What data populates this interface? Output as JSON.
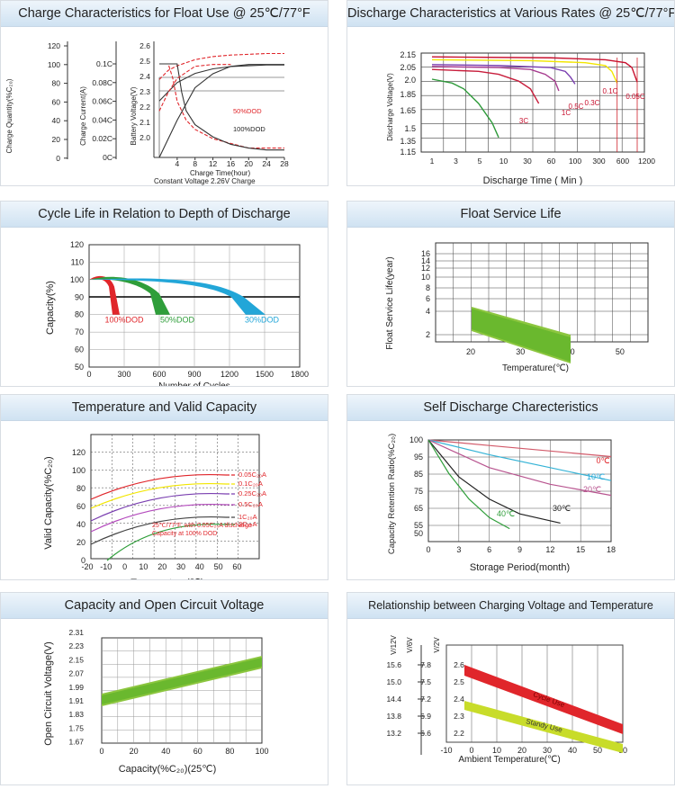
{
  "palette": {
    "grid": "#555",
    "red": "#e0262b",
    "green": "#2f9e3a",
    "blue": "#22a6d8",
    "lime": "#8cc63f",
    "yellow": "#f2e600",
    "orange": "#f7a11a",
    "pink": "#d0217a",
    "purple": "#7a3fb0",
    "magenta": "#b44bbd"
  },
  "panels": [
    {
      "title": "Charge Characteristics for Float Use @ 25℃/77°F"
    },
    {
      "title": "Discharge Characteristics at Various Rates @ 25℃/77°F"
    },
    {
      "title": "Cycle  Life in Relation to Depth of Discharge"
    },
    {
      "title": "Float Service Life"
    },
    {
      "title": "Temperature and Valid Capacity"
    },
    {
      "title": "Self Discharge Charecteristics"
    },
    {
      "title": "Capacity and Open Circuit Voltage"
    },
    {
      "title": "Relationship between Charging Voltage and Temperature"
    }
  ],
  "chart_data": [
    {
      "type": "line",
      "id": "charge",
      "ylabel_q": "Charge Quantity(%C₂₀)",
      "ylabel_i": "Charge Current(A)",
      "ylabel_v": "Battery Voltage(V)",
      "xlabel": "Charge Time(hour)",
      "note": "Constant Voltage 2.26V Charge",
      "q_ticks": [
        "120",
        "100",
        "80",
        "60",
        "40",
        "20",
        "0"
      ],
      "i_ticks": [
        "0.1C",
        "0.08C",
        "0.06C",
        "0.04C",
        "0.02C",
        "0C"
      ],
      "v_ticks": [
        "2.6",
        "2.5",
        "2.4",
        "2.3",
        "2.2",
        "2.1",
        "2.0"
      ],
      "x_ticks": [
        "4",
        "8",
        "12",
        "16",
        "20",
        "24",
        "28"
      ],
      "legend": [
        "50%DOD",
        "100%DOD"
      ],
      "series": [
        {
          "name": "50%DOD",
          "kind": "voltage",
          "x": [
            0,
            2,
            4,
            8,
            12,
            16,
            20,
            24,
            28
          ],
          "y": [
            2.38,
            2.44,
            2.47,
            2.51,
            2.53,
            2.54,
            2.545,
            2.55,
            2.55
          ]
        },
        {
          "name": "100%DOD",
          "kind": "voltage",
          "x": [
            0,
            2,
            4,
            8,
            12,
            16,
            20,
            24,
            28
          ],
          "y": [
            2.24,
            2.3,
            2.36,
            2.42,
            2.45,
            2.465,
            2.47,
            2.475,
            2.475
          ]
        },
        {
          "name": "50%DOD",
          "kind": "current",
          "x": [
            0,
            2,
            3,
            4,
            6,
            8,
            12,
            16,
            20,
            24,
            28
          ],
          "y": [
            0.1,
            0.1,
            0.085,
            0.06,
            0.04,
            0.03,
            0.02,
            0.015,
            0.01,
            0.01,
            0.01
          ]
        },
        {
          "name": "100%DOD",
          "kind": "current",
          "x": [
            0,
            4,
            5,
            6,
            8,
            12,
            16,
            20,
            24,
            28
          ],
          "y": [
            0.1,
            0.1,
            0.07,
            0.05,
            0.035,
            0.022,
            0.014,
            0.01,
            0.008,
            0.008
          ]
        },
        {
          "name": "50%DOD",
          "kind": "capacity",
          "x": [
            0,
            2,
            4,
            8,
            12,
            16
          ],
          "y": [
            50,
            70,
            85,
            98,
            100,
            100
          ]
        },
        {
          "name": "100%DOD",
          "kind": "capacity",
          "x": [
            0,
            4,
            8,
            12,
            16,
            20,
            24,
            28
          ],
          "y": [
            0,
            40,
            75,
            90,
            98,
            100,
            100,
            100
          ]
        }
      ]
    },
    {
      "type": "line",
      "id": "discharge",
      "ylabel": "Discharge Voltage(V)",
      "xlabel": "Discharge Time ( Min )",
      "y_ticks": [
        "2.15",
        "2.05",
        "2.0",
        "1.85",
        "1.65",
        "1.5",
        "1.35",
        "1.15"
      ],
      "x_ticks": [
        "1",
        "3",
        "5",
        "10",
        "30",
        "60",
        "100",
        "300",
        "600",
        "1200"
      ],
      "series": [
        {
          "name": "3C",
          "x": [
            1,
            2,
            3,
            5,
            8,
            10
          ],
          "y": [
            1.9,
            1.86,
            1.8,
            1.65,
            1.45,
            1.3
          ]
        },
        {
          "name": "1C",
          "x": [
            1,
            5,
            10,
            20,
            30,
            40
          ],
          "y": [
            2.0,
            1.98,
            1.95,
            1.88,
            1.8,
            1.65
          ]
        },
        {
          "name": "0.5C",
          "x": [
            1,
            10,
            30,
            50,
            70,
            80
          ],
          "y": [
            2.03,
            2.02,
            2.0,
            1.95,
            1.88,
            1.78
          ]
        },
        {
          "name": "0.3C",
          "x": [
            1,
            10,
            60,
            100,
            120,
            140
          ],
          "y": [
            2.05,
            2.04,
            2.02,
            1.98,
            1.92,
            1.85
          ]
        },
        {
          "name": "0.1C",
          "x": [
            1,
            30,
            200,
            400,
            500,
            600
          ],
          "y": [
            2.1,
            2.09,
            2.07,
            2.04,
            1.98,
            1.86
          ]
        },
        {
          "name": "0.05C",
          "x": [
            1,
            60,
            400,
            800,
            1000,
            1200
          ],
          "y": [
            2.13,
            2.12,
            2.1,
            2.07,
            2.02,
            1.87
          ]
        }
      ]
    },
    {
      "type": "area",
      "id": "cycle",
      "ylabel": "Capacity(%)",
      "xlabel": "Number of Cycles",
      "y_ticks": [
        "120",
        "110",
        "100",
        "90",
        "80",
        "70",
        "60",
        "50"
      ],
      "x_ticks": [
        "0",
        "300",
        "600",
        "900",
        "1200",
        "1500",
        "1800"
      ],
      "labels": [
        "100%DOD",
        "50%DOD",
        "30%DOD"
      ]
    },
    {
      "type": "area",
      "id": "float",
      "ylabel": "Float Service Life(year)",
      "xlabel": "Temperature(℃)",
      "y_ticks": [
        "16",
        "14",
        "12",
        "10",
        "8",
        "6",
        "4",
        "2"
      ],
      "x_ticks": [
        "20",
        "30",
        "40",
        "50"
      ]
    },
    {
      "type": "line",
      "id": "temp",
      "ylabel": "Valid Capacity(%C₂₀)",
      "xlabel": "Temperature(℃)",
      "y_ticks": [
        "120",
        "100",
        "80",
        "60",
        "40",
        "20",
        "0"
      ],
      "x_ticks": [
        "-20",
        "-10",
        "0",
        "10",
        "20",
        "30",
        "40",
        "50",
        "60"
      ],
      "series_labels": [
        "0.05C₂₀A",
        "0.1C₂₀A",
        "0.25C₂₀A",
        "0.5C₂₀A",
        "1C₂₀A",
        "2C₂₀A"
      ],
      "note1": "25℃/77°F, with 0.05C₂₀A discharge",
      "note2": "Capacity at 100% DOD"
    },
    {
      "type": "line",
      "id": "self",
      "ylabel": "Capacity Retention Ratio(%C₂₀)",
      "xlabel": "Storage Period(month)",
      "y_ticks": [
        "100",
        "95",
        "85",
        "75",
        "65",
        "55",
        "50"
      ],
      "x_ticks": [
        "0",
        "3",
        "6",
        "9",
        "12",
        "15",
        "18"
      ],
      "series": [
        {
          "name": "0℃",
          "x": [
            0,
            6,
            12,
            18
          ],
          "y": [
            100,
            97,
            94,
            91
          ]
        },
        {
          "name": "10℃",
          "x": [
            0,
            6,
            12,
            18
          ],
          "y": [
            100,
            92,
            85,
            78
          ]
        },
        {
          "name": "20℃",
          "x": [
            0,
            6,
            12,
            18
          ],
          "y": [
            100,
            85,
            76,
            70
          ]
        },
        {
          "name": "30℃",
          "x": [
            0,
            3,
            6,
            9,
            13
          ],
          "y": [
            100,
            80,
            68,
            60,
            55
          ]
        },
        {
          "name": "40℃",
          "x": [
            0,
            2,
            4,
            6,
            8
          ],
          "y": [
            100,
            82,
            68,
            58,
            52
          ]
        }
      ]
    },
    {
      "type": "area",
      "id": "ocv",
      "ylabel": "Open Circuit Voltage(V)",
      "xlabel": "Capacity(%C₂₀)(25℃)",
      "y_ticks": [
        "2.31",
        "2.23",
        "2.15",
        "2.07",
        "1.99",
        "1.91",
        "1.83",
        "1.75",
        "1.67"
      ],
      "x_ticks": [
        "0",
        "20",
        "40",
        "60",
        "80",
        "100"
      ]
    },
    {
      "type": "area",
      "id": "chgtemp",
      "xlabel": "Ambient Temperature(℃)",
      "col1": "V/12V",
      "col2": "V/6V",
      "col3": "V/2V",
      "t12": [
        "15.6",
        "15.0",
        "14.4",
        "13.8",
        "13.2"
      ],
      "t6": [
        "7.8",
        "7.5",
        "7.2",
        "6.9",
        "6.6"
      ],
      "t2": [
        "2.6",
        "2.5",
        "2.4",
        "2.3",
        "2.2"
      ],
      "x_ticks": [
        "-10",
        "0",
        "10",
        "20",
        "30",
        "40",
        "50",
        "60"
      ],
      "bands": [
        "Cycle Use",
        "Standy Use"
      ]
    }
  ]
}
